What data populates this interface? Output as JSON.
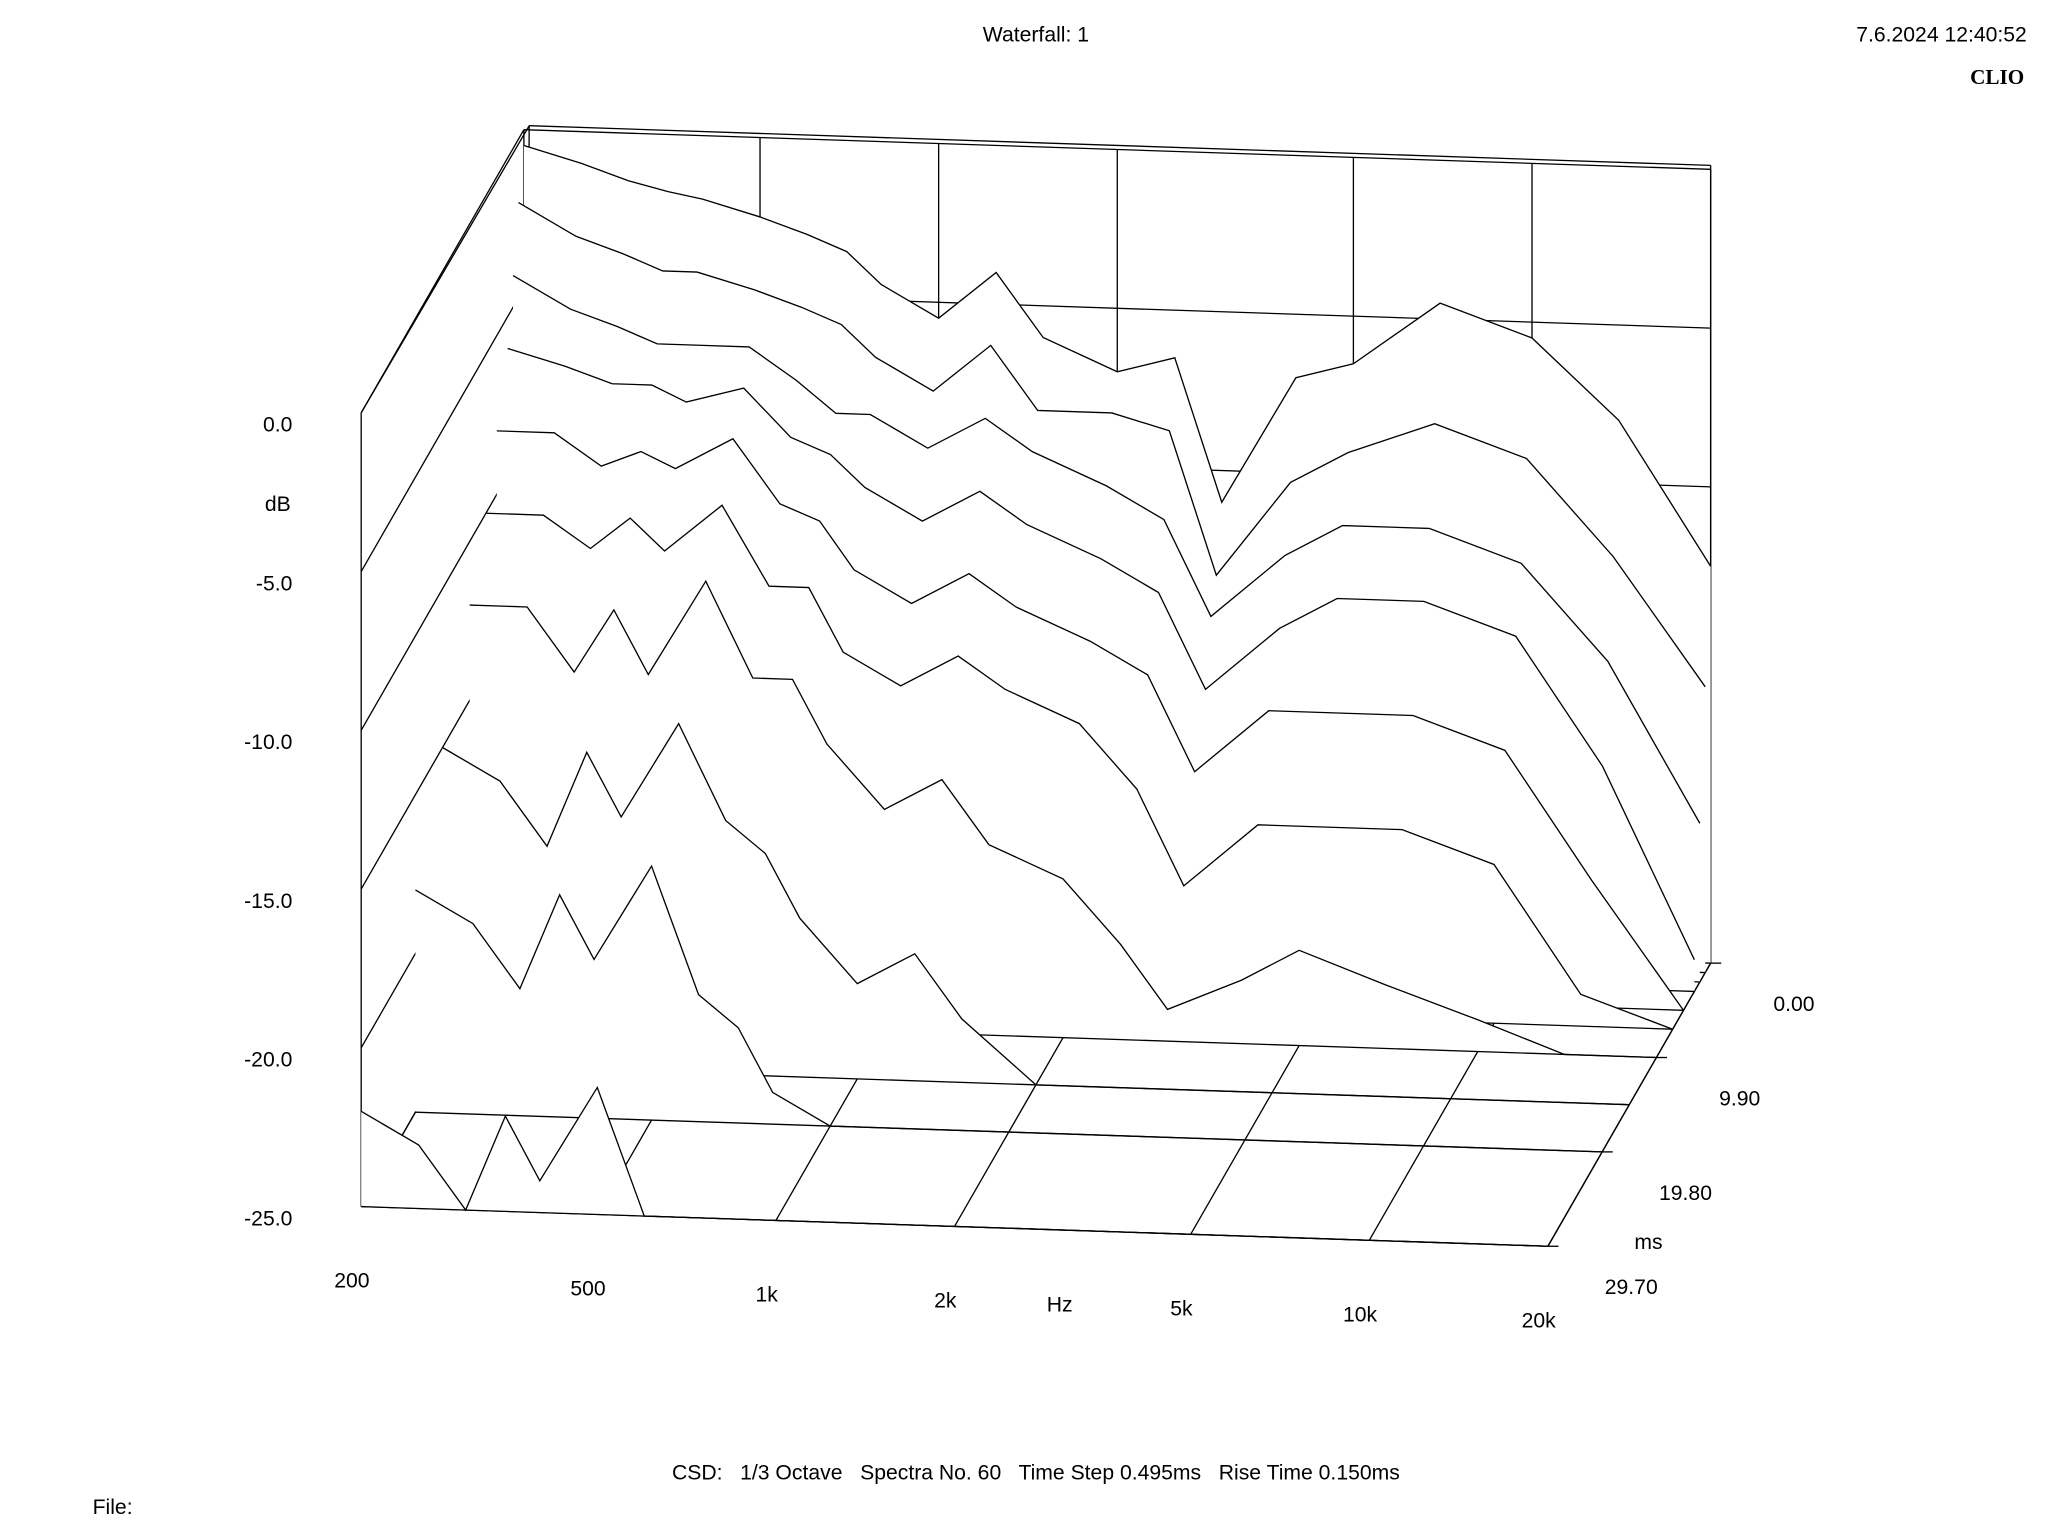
{
  "header": {
    "title": "Waterfall: 1",
    "timestamp": "7.6.2024 12:40:52",
    "brand": "CLIO"
  },
  "chart_data": {
    "type": "waterfall",
    "y_label": "dB",
    "x_label": "Hz",
    "z_label": "ms",
    "xlim": [
      200,
      20000
    ],
    "x_scale": "log",
    "xticks": [
      200,
      500,
      {
        "value": 1000,
        "label": "1k"
      },
      {
        "value": 2000,
        "label": "2k"
      },
      {
        "value": 5000,
        "label": "5k"
      },
      {
        "value": 10000,
        "label": "10k"
      },
      {
        "value": 20000,
        "label": "20k"
      }
    ],
    "ylim": [
      -25,
      0
    ],
    "yticks": [
      {
        "value": 0,
        "label": "0.0"
      },
      {
        "value": -5,
        "label": "-5.0"
      },
      {
        "value": -10,
        "label": "-10.0"
      },
      {
        "value": -15,
        "label": "-15.0"
      },
      {
        "value": -20,
        "label": "-20.0"
      },
      {
        "value": -25,
        "label": "-25.0"
      }
    ],
    "zlim": [
      0,
      29.7
    ],
    "zticks": [
      {
        "value": 0,
        "label": "0.00"
      },
      {
        "value": 9.9,
        "label": "9.90"
      },
      {
        "value": 19.8,
        "label": "19.80"
      },
      {
        "value": 29.7,
        "label": "29.70"
      }
    ],
    "frequencies": [
      200,
      250,
      300,
      350,
      400,
      500,
      600,
      700,
      800,
      1000,
      1250,
      1500,
      2000,
      2500,
      3000,
      4000,
      5000,
      7000,
      10000,
      14000,
      20000
    ],
    "spectra": [
      {
        "time": 0,
        "values": [
          -0.5,
          -1,
          -1.5,
          -1.8,
          -2,
          -2.5,
          -3,
          -3.5,
          -4.5,
          -5.5,
          -4,
          -6,
          -7,
          -6.5,
          -11,
          -7,
          -6.5,
          -4.5,
          -5.5,
          -8,
          -12.5
        ]
      },
      {
        "time": 0.99,
        "values": [
          -2,
          -3,
          -3.5,
          -4,
          -4,
          -4.5,
          -5,
          -5.5,
          -6.5,
          -7.5,
          -6,
          -8,
          -8,
          -8.5,
          -13,
          -10,
          -9,
          -8,
          -9,
          -12,
          -16
        ]
      },
      {
        "time": 1.98,
        "values": [
          -4,
          -5,
          -5.5,
          -6,
          -6,
          -6,
          -7,
          -8,
          -8,
          -9,
          -8,
          -9,
          -10,
          -11,
          -14,
          -12,
          -11,
          -11,
          -12,
          -15,
          -20
        ]
      },
      {
        "time": 2.97,
        "values": [
          -6,
          -6.5,
          -7,
          -7,
          -7.5,
          -7,
          -8.5,
          -9,
          -10,
          -11,
          -10,
          -11,
          -12,
          -13,
          -16,
          -14,
          -13,
          -13,
          -14,
          -18,
          -24
        ]
      },
      {
        "time": 4.95,
        "values": [
          -8,
          -8,
          -9,
          -8.5,
          -9,
          -8,
          -10,
          -10.5,
          -12,
          -13,
          -12,
          -13,
          -14,
          -15,
          -18,
          -16,
          -16,
          -16,
          -17,
          -21,
          -25
        ]
      },
      {
        "time": 6.93,
        "values": [
          -10,
          -10,
          -11,
          -10,
          -11,
          -9.5,
          -12,
          -12,
          -14,
          -15,
          -14,
          -15,
          -16,
          -18,
          -21,
          -19,
          -19,
          -19,
          -20,
          -24,
          -25
        ]
      },
      {
        "time": 9.9,
        "values": [
          -12,
          -12,
          -14,
          -12,
          -14,
          -11,
          -14,
          -14,
          -16,
          -18,
          -17,
          -19,
          -20,
          -22,
          -24,
          -23,
          -22,
          -23,
          -24,
          -25,
          -25
        ]
      },
      {
        "time": 14.85,
        "values": [
          -15,
          -16,
          -18,
          -15,
          -17,
          -14,
          -17,
          -18,
          -20,
          -22,
          -21,
          -23,
          -25,
          -25,
          -25,
          -25,
          -25,
          -25,
          -25,
          -25,
          -25
        ]
      },
      {
        "time": 19.8,
        "values": [
          -18,
          -19,
          -21,
          -18,
          -20,
          -17,
          -21,
          -22,
          -24,
          -25,
          -25,
          -25,
          -25,
          -25,
          -25,
          -25,
          -25,
          -25,
          -25,
          -25,
          -25
        ]
      },
      {
        "time": 29.7,
        "values": [
          -22,
          -23,
          -25,
          -22,
          -24,
          -21,
          -25,
          -25,
          -25,
          -25,
          -25,
          -25,
          -25,
          -25,
          -25,
          -25,
          -25,
          -25,
          -25,
          -25,
          -25
        ]
      }
    ]
  },
  "footer": {
    "settings": "CSD:   1/3 Octave   Spectra No. 60   Time Step 0.495ms   Rise Time 0.150ms",
    "file": "File:"
  }
}
